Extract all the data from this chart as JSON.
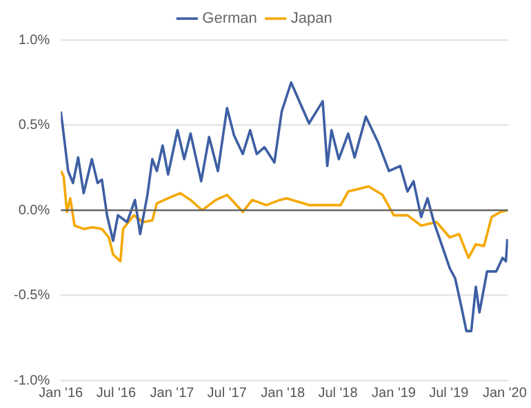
{
  "chart_data": {
    "type": "line",
    "legend": "top",
    "grid": "y",
    "marker": "none",
    "line_style": "solid",
    "xlim": [
      "2016-01-01",
      "2020-01-12"
    ],
    "xticks": [
      {
        "value": "2016-01-01",
        "label": "Jan '16"
      },
      {
        "value": "2016-07-01",
        "label": "Jul '16"
      },
      {
        "value": "2017-01-01",
        "label": "Jan '17"
      },
      {
        "value": "2017-07-01",
        "label": "Jul '17"
      },
      {
        "value": "2018-01-01",
        "label": "Jan '18"
      },
      {
        "value": "2018-07-01",
        "label": "Jul '18"
      },
      {
        "value": "2019-01-01",
        "label": "Jan '19"
      },
      {
        "value": "2019-07-01",
        "label": "Jul '19"
      },
      {
        "value": "2020-01-01",
        "label": "Jan '20"
      }
    ],
    "ylim": [
      -1,
      1
    ],
    "yticks": [
      {
        "value": -1,
        "label": "-1.0%"
      },
      {
        "value": -0.5,
        "label": "-0.5%"
      },
      {
        "value": 0,
        "label": "0.0%"
      },
      {
        "value": 0.5,
        "label": "0.5%"
      },
      {
        "value": 1,
        "label": "1.0%"
      }
    ],
    "ref_lines": [
      {
        "axis": "y",
        "value": 0,
        "color": "#666666"
      }
    ],
    "series": [
      {
        "name": "German",
        "color": "#3d5fa3",
        "x": [
          "2016-01-01",
          "2016-01-10",
          "2016-01-25",
          "2016-02-10",
          "2016-02-27",
          "2016-03-16",
          "2016-04-12",
          "2016-05-01",
          "2016-05-15",
          "2016-06-01",
          "2016-06-21",
          "2016-07-07",
          "2016-08-06",
          "2016-09-01",
          "2016-09-18",
          "2016-10-12",
          "2016-10-28",
          "2016-11-12",
          "2016-12-01",
          "2016-12-19",
          "2017-01-19",
          "2017-02-10",
          "2017-03-03",
          "2017-04-07",
          "2017-05-03",
          "2017-06-01",
          "2017-07-01",
          "2017-07-24",
          "2017-08-22",
          "2017-09-15",
          "2017-10-07",
          "2017-11-01",
          "2017-12-04",
          "2017-12-28",
          "2018-01-28",
          "2018-03-28",
          "2018-05-12",
          "2018-05-27",
          "2018-06-10",
          "2018-07-04",
          "2018-08-04",
          "2018-08-25",
          "2018-10-01",
          "2018-11-10",
          "2018-12-16",
          "2019-01-22",
          "2019-02-15",
          "2019-03-07",
          "2019-04-01",
          "2019-04-22",
          "2019-05-13",
          "2019-06-13",
          "2019-07-04",
          "2019-07-22",
          "2019-08-13",
          "2019-08-28",
          "2019-09-13",
          "2019-09-28",
          "2019-10-10",
          "2019-11-04",
          "2019-12-04",
          "2019-12-25",
          "2020-01-05",
          "2020-01-10"
        ],
        "values": [
          0.58,
          0.45,
          0.23,
          0.16,
          0.31,
          0.1,
          0.3,
          0.16,
          0.18,
          -0.03,
          -0.18,
          -0.03,
          -0.07,
          0.06,
          -0.14,
          0.09,
          0.3,
          0.23,
          0.38,
          0.21,
          0.47,
          0.3,
          0.45,
          0.17,
          0.43,
          0.23,
          0.6,
          0.44,
          0.33,
          0.47,
          0.33,
          0.37,
          0.28,
          0.58,
          0.75,
          0.51,
          0.64,
          0.26,
          0.47,
          0.3,
          0.45,
          0.31,
          0.55,
          0.4,
          0.23,
          0.26,
          0.11,
          0.17,
          -0.04,
          0.07,
          -0.07,
          -0.23,
          -0.34,
          -0.4,
          -0.58,
          -0.71,
          -0.71,
          -0.45,
          -0.6,
          -0.36,
          -0.36,
          -0.28,
          -0.3,
          -0.17
        ]
      },
      {
        "name": "Japan",
        "color": "#f5a800",
        "x": [
          "2016-01-01",
          "2016-01-10",
          "2016-01-21",
          "2016-02-01",
          "2016-02-15",
          "2016-03-16",
          "2016-04-15",
          "2016-05-15",
          "2016-06-07",
          "2016-06-21",
          "2016-07-15",
          "2016-07-24",
          "2016-08-28",
          "2016-09-28",
          "2016-10-28",
          "2016-11-12",
          "2016-12-19",
          "2017-01-28",
          "2017-03-03",
          "2017-04-10",
          "2017-05-25",
          "2017-07-01",
          "2017-08-22",
          "2017-09-22",
          "2017-11-07",
          "2017-12-22",
          "2018-01-13",
          "2018-03-28",
          "2018-07-10",
          "2018-08-04",
          "2018-10-10",
          "2018-11-25",
          "2019-01-01",
          "2019-02-15",
          "2019-04-01",
          "2019-05-22",
          "2019-07-04",
          "2019-08-04",
          "2019-09-04",
          "2019-09-28",
          "2019-10-25",
          "2019-11-19",
          "2019-12-19",
          "2020-01-10"
        ],
        "values": [
          0.23,
          0.2,
          -0.01,
          0.07,
          -0.09,
          -0.11,
          -0.1,
          -0.11,
          -0.16,
          -0.26,
          -0.3,
          -0.11,
          -0.03,
          -0.07,
          -0.06,
          0.04,
          0.07,
          0.1,
          0.06,
          0.0,
          0.06,
          0.09,
          -0.01,
          0.06,
          0.03,
          0.06,
          0.07,
          0.03,
          0.03,
          0.11,
          0.14,
          0.09,
          -0.03,
          -0.03,
          -0.09,
          -0.07,
          -0.16,
          -0.14,
          -0.28,
          -0.2,
          -0.21,
          -0.04,
          -0.01,
          0.0
        ]
      }
    ]
  }
}
